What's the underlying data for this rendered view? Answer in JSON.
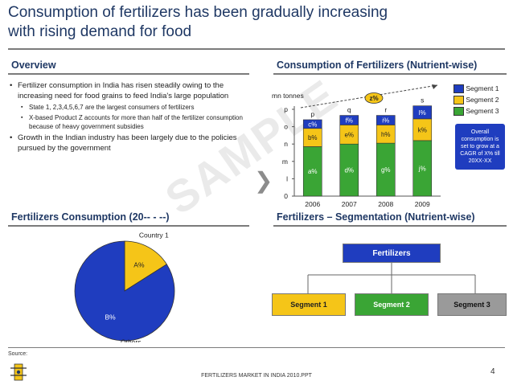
{
  "page": {
    "title_line1": "Consumption of fertilizers has been gradually increasing",
    "title_line2": "with rising demand for food",
    "watermark": "SAMPLE"
  },
  "overview": {
    "heading": "Overview",
    "bullets": [
      "Fertilizer consumption in India has risen steadily owing to the increasing need for food grains to feed India's large population",
      "Growth in the Indian industry has been largely due to the policies pursued by the government"
    ],
    "sub_bullets": [
      "State 1, 2,3,4,5,6,7 are the largest consumers of fertilizers",
      "X-based Product Z accounts for more than half of the fertilizer consumption because of heavy government subsidies"
    ]
  },
  "pie_section": {
    "heading": "Fertilizers Consumption (20-- - --)"
  },
  "bar_section": {
    "heading": "Consumption of Fertilizers (Nutrient-wise)",
    "callout": "Overall consumption is set to grow at a CAGR of X% till 20XX-XX"
  },
  "seg_section": {
    "heading": "Fertilizers – Segmentation (Nutrient-wise)",
    "root": "Fertilizers",
    "segments": [
      "Segment 1",
      "Segment 2",
      "Segment 3"
    ]
  },
  "footer": {
    "source": "Source:",
    "center": "FERTILIZERS MARKET IN INDIA 2010.PPT",
    "page_number": "4"
  },
  "colors": {
    "seg1": "#1f3dbf",
    "seg2": "#f5c518",
    "seg3": "#3aa535",
    "gray": "#9a9a9a",
    "title": "#1f3864"
  },
  "chart_data": [
    {
      "type": "bar",
      "stacked": true,
      "title": "Consumption of Fertilizers (Nutrient-wise)",
      "ylabel": "mn tonnes",
      "categories": [
        "2006",
        "2007",
        "2008",
        "2009"
      ],
      "y_tick_labels": [
        "0",
        "l",
        "m",
        "n",
        "o",
        "p"
      ],
      "ylim": [
        0,
        5
      ],
      "series": [
        {
          "name": "Segment 3",
          "color": "#3aa535",
          "values": [
            2.85,
            3.0,
            3.05,
            3.2
          ],
          "labels": [
            "a%",
            "d%",
            "g%",
            "j%"
          ]
        },
        {
          "name": "Segment 2",
          "color": "#f5c518",
          "values": [
            1.05,
            1.1,
            1.05,
            1.25
          ],
          "labels": [
            "b%",
            "e%",
            "h%",
            "k%"
          ]
        },
        {
          "name": "Segment 1",
          "color": "#1f3dbf",
          "values": [
            0.5,
            0.55,
            0.55,
            0.75
          ],
          "labels": [
            "c%",
            "f%",
            "i%",
            "l%"
          ]
        }
      ],
      "totals": [
        "p",
        "q",
        "r",
        "s"
      ],
      "cagr_label": "z%",
      "legend": [
        "Segment 1",
        "Segment 2",
        "Segment 3"
      ]
    },
    {
      "type": "pie",
      "title": "Fertilizers Consumption (20-- - --)",
      "slices": [
        {
          "name": "Country 1",
          "label": "A%",
          "value": 16,
          "color": "#f5c518"
        },
        {
          "name": "Others",
          "label": "B%",
          "value": 84,
          "color": "#1f3dbf"
        }
      ]
    }
  ]
}
